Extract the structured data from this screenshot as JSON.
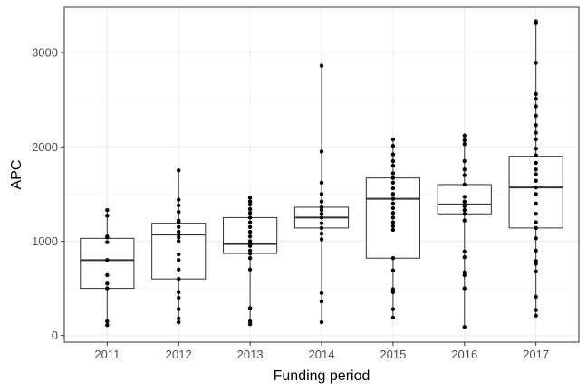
{
  "chart_data": {
    "type": "box",
    "xlabel": "Funding period",
    "ylabel": "APC",
    "ylim": [
      -70,
      3480
    ],
    "y_ticks": [
      0,
      1000,
      2000,
      3000
    ],
    "grid": true,
    "theme": "black-and-white",
    "categories": [
      "2011",
      "2012",
      "2013",
      "2014",
      "2015",
      "2016",
      "2017"
    ],
    "boxes": [
      {
        "category": "2011",
        "q1": 500,
        "median": 800,
        "q3": 1030,
        "min": 110,
        "max": 1330,
        "points": [
          110,
          150,
          500,
          550,
          640,
          800,
          990,
          1040,
          1050,
          1270,
          1330
        ]
      },
      {
        "category": "2012",
        "q1": 600,
        "median": 1070,
        "q3": 1190,
        "min": 140,
        "max": 1750,
        "points": [
          140,
          180,
          280,
          400,
          460,
          600,
          700,
          800,
          860,
          1000,
          1040,
          1070,
          1100,
          1150,
          1200,
          1220,
          1310,
          1380,
          1440,
          1750
        ]
      },
      {
        "category": "2013",
        "q1": 870,
        "median": 970,
        "q3": 1250,
        "min": 120,
        "max": 1460,
        "points": [
          120,
          150,
          290,
          700,
          820,
          870,
          900,
          950,
          970,
          1000,
          1050,
          1100,
          1150,
          1200,
          1250,
          1300,
          1340,
          1390,
          1420,
          1460
        ]
      },
      {
        "category": "2014",
        "q1": 1140,
        "median": 1250,
        "q3": 1360,
        "min": 140,
        "max": 2860,
        "points": [
          140,
          360,
          450,
          1020,
          1080,
          1140,
          1190,
          1250,
          1290,
          1330,
          1360,
          1420,
          1500,
          1620,
          1950,
          2860
        ]
      },
      {
        "category": "2015",
        "q1": 820,
        "median": 1450,
        "q3": 1670,
        "min": 190,
        "max": 2080,
        "points": [
          190,
          280,
          460,
          490,
          690,
          820,
          1120,
          1160,
          1200,
          1250,
          1300,
          1350,
          1400,
          1450,
          1500,
          1560,
          1620,
          1670,
          1720,
          1800,
          1850,
          1920,
          2010,
          2080
        ]
      },
      {
        "category": "2016",
        "q1": 1290,
        "median": 1390,
        "q3": 1600,
        "min": 90,
        "max": 2120,
        "points": [
          90,
          500,
          640,
          670,
          830,
          890,
          1220,
          1290,
          1330,
          1370,
          1390,
          1420,
          1470,
          1600,
          1700,
          1760,
          1850,
          2030,
          2070,
          2120
        ]
      },
      {
        "category": "2017",
        "q1": 1140,
        "median": 1570,
        "q3": 1900,
        "min": 210,
        "max": 3330,
        "points": [
          210,
          270,
          410,
          680,
          760,
          790,
          900,
          1030,
          1140,
          1200,
          1290,
          1400,
          1500,
          1570,
          1640,
          1710,
          1760,
          1830,
          1910,
          1980,
          2080,
          2150,
          2230,
          2330,
          2430,
          2510,
          2560,
          2890,
          3310,
          3330
        ]
      }
    ]
  }
}
